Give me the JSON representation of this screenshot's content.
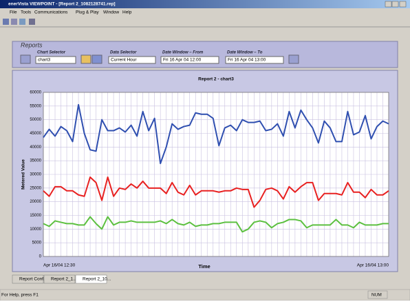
{
  "window": {
    "title": "enerVista VIEWPOINT - [Report 2_1082128741.rep]"
  },
  "menu": [
    "File",
    "Tools",
    "Communications",
    "Plug & Play",
    "Window",
    "Help"
  ],
  "reports": {
    "heading": "Reports",
    "chart_selector_label": "Chart Selector",
    "chart_selector": "chart3",
    "data_selector_label": "Data Selector",
    "data_selector": "Current Hour",
    "from_label": "Date Window – From",
    "from": "Fri 16 Apr 04 12:00",
    "to_label": "Date Window – To",
    "to": "Fri 16 Apr 04 13:00"
  },
  "tabs": [
    "Report Conf...",
    "Report 2_1...",
    "Report 2_10..."
  ],
  "status": {
    "help": "For Help, press F1",
    "num": "NUM"
  },
  "chart_data": {
    "type": "line",
    "title": "Report 2 - chart3",
    "x_label": "Time",
    "y_label": "Metered Value",
    "categories": [
      "Apr 16/04 12:30",
      null,
      null,
      null,
      null,
      null,
      null,
      null,
      null,
      null,
      null,
      null,
      null,
      null,
      null,
      null,
      null,
      null,
      null,
      null,
      null,
      null,
      null,
      null,
      null,
      null,
      null,
      null,
      null,
      null,
      null,
      null,
      null,
      null,
      null,
      null,
      null,
      null,
      null,
      null,
      null,
      null,
      null,
      null,
      null,
      null,
      null,
      null,
      null,
      null,
      null,
      null,
      null,
      null,
      null,
      null,
      null,
      null,
      null,
      "Apr 16/04 13:00"
    ],
    "series": [
      {
        "color": "#2f4fb0",
        "values": [
          43500,
          46500,
          44000,
          47500,
          46000,
          42000,
          55500,
          45000,
          39000,
          38500,
          50000,
          46000,
          46000,
          47000,
          45500,
          48000,
          44000,
          53000,
          46000,
          50500,
          34000,
          40000,
          48500,
          46500,
          47500,
          48000,
          52500,
          52000,
          52000,
          50500,
          40500,
          47000,
          48000,
          46000,
          50000,
          49000,
          49000,
          49500,
          46000,
          46500,
          48500,
          44000,
          53000,
          47000,
          53500,
          50000,
          47000,
          41500,
          49500,
          47000,
          42000,
          42000,
          53000,
          44500,
          45500,
          51500,
          43000,
          47500,
          49500,
          48500
        ]
      },
      {
        "color": "#e82020",
        "values": [
          24000,
          22000,
          25500,
          25500,
          24000,
          24000,
          22500,
          22000,
          29000,
          27000,
          20500,
          29000,
          22000,
          25000,
          24500,
          26500,
          25000,
          27500,
          25000,
          25000,
          25000,
          23000,
          27000,
          23500,
          22500,
          26000,
          22500,
          24000,
          24000,
          24000,
          23500,
          24000,
          24000,
          25000,
          24500,
          24500,
          18000,
          20500,
          24500,
          25000,
          24000,
          21000,
          25500,
          23500,
          25500,
          27000,
          27000,
          20500,
          23000,
          23000,
          23000,
          22500,
          27000,
          23500,
          23500,
          21500,
          24500,
          22500,
          22500,
          24000
        ]
      },
      {
        "color": "#5cc040",
        "values": [
          12000,
          11000,
          13000,
          12500,
          12000,
          12000,
          11500,
          11500,
          14500,
          12000,
          10000,
          14500,
          11500,
          12500,
          12500,
          13000,
          12500,
          12500,
          12500,
          12500,
          13000,
          12000,
          13500,
          12000,
          11500,
          12500,
          11000,
          11500,
          11500,
          12000,
          12000,
          12500,
          12500,
          12500,
          9000,
          10000,
          12500,
          13000,
          12500,
          10500,
          12000,
          12500,
          13500,
          13500,
          13000,
          10500,
          11500,
          11500,
          11500,
          11500,
          13500,
          11500,
          11500,
          10500,
          12500,
          11500,
          11500,
          11500,
          12000,
          12000
        ]
      }
    ],
    "ylim": [
      0,
      60000
    ],
    "yticks": [
      0,
      5000,
      10000,
      15000,
      20000,
      25000,
      30000,
      35000,
      40000,
      45000,
      50000,
      55000,
      60000
    ],
    "grid": true
  }
}
